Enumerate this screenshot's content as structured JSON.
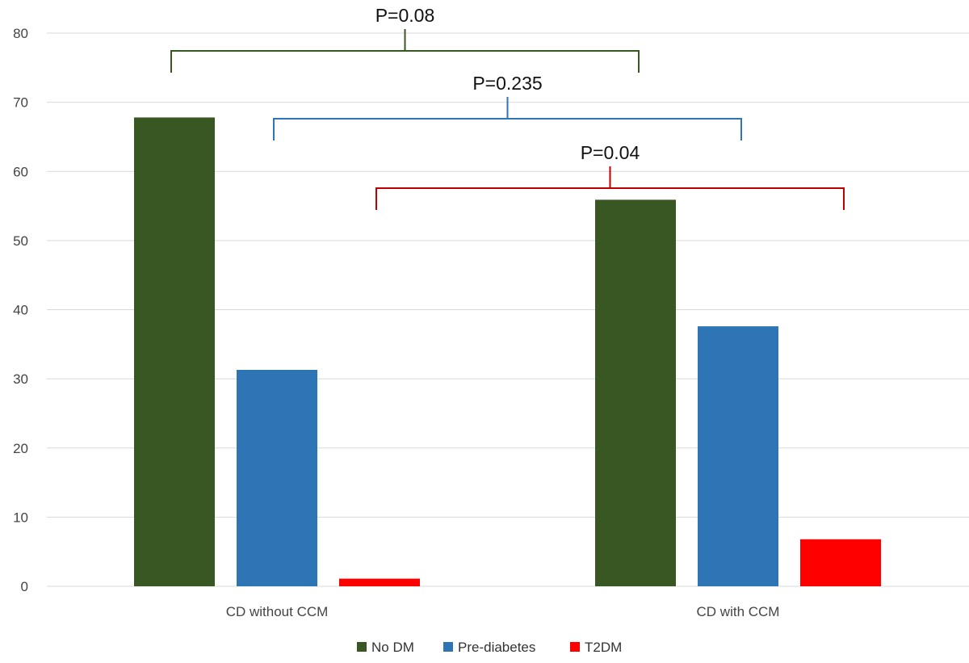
{
  "chart_data": {
    "type": "bar",
    "categories": [
      "CD without CCM",
      "CD with CCM"
    ],
    "series": [
      {
        "name": "No DM",
        "values": [
          67.8,
          55.9
        ],
        "color": "#385723"
      },
      {
        "name": "Pre-diabetes",
        "values": [
          31.3,
          37.6
        ],
        "color": "#2e75b6"
      },
      {
        "name": "T2DM",
        "values": [
          1.1,
          6.8
        ],
        "color": "#ff0000"
      }
    ],
    "ylim": [
      0,
      80
    ],
    "yticks": [
      0,
      10,
      20,
      30,
      40,
      50,
      60,
      70,
      80
    ],
    "grid": true,
    "legend_position": "bottom",
    "annotations": [
      {
        "text": "P=0.08",
        "series": "No DM",
        "color": "#385723"
      },
      {
        "text": "P=0.235",
        "series": "Pre-diabetes",
        "color": "#2e75b6"
      },
      {
        "text": "P=0.04",
        "series": "T2DM",
        "color": "#c00000"
      }
    ]
  }
}
